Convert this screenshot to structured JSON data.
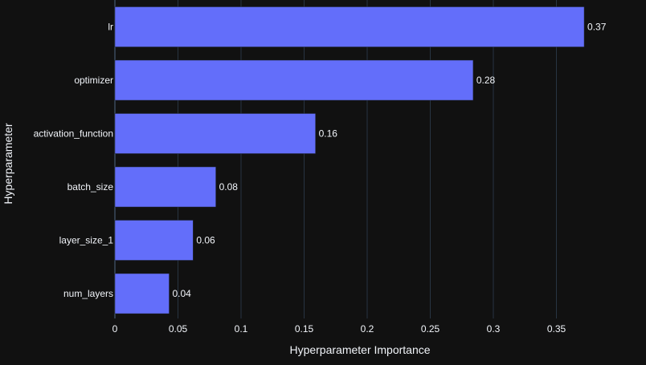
{
  "chart_data": {
    "type": "bar",
    "orientation": "horizontal",
    "categories": [
      "lr",
      "optimizer",
      "activation_function",
      "batch_size",
      "layer_size_1",
      "num_layers"
    ],
    "values": [
      0.372,
      0.284,
      0.159,
      0.08,
      0.062,
      0.043
    ],
    "data_labels": [
      "0.37",
      "0.28",
      "0.16",
      "0.08",
      "0.06",
      "0.04"
    ],
    "xlabel": "Hyperparameter Importance",
    "ylabel": "Hyperparameter",
    "xlim": [
      0,
      0.4
    ],
    "xticks": [
      0,
      0.05,
      0.1,
      0.15,
      0.2,
      0.25,
      0.3,
      0.35
    ],
    "xtick_labels": [
      "0",
      "0.05",
      "0.1",
      "0.15",
      "0.2",
      "0.25",
      "0.3",
      "0.35"
    ],
    "grid": true,
    "colors": {
      "background": "#111111",
      "bar": "#636efa",
      "grid": "#283442",
      "text": "#f2f5fa"
    }
  }
}
